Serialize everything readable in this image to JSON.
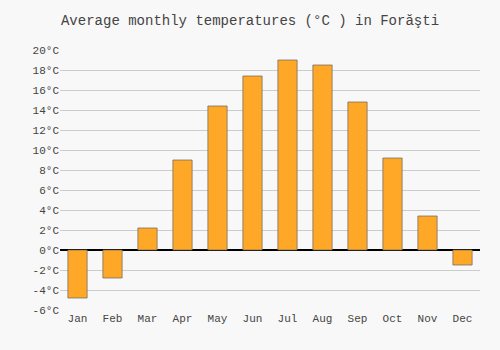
{
  "chart_data": {
    "type": "bar",
    "title": "Average monthly temperatures (°C ) in Forăşti",
    "categories": [
      "Jan",
      "Feb",
      "Mar",
      "Apr",
      "May",
      "Jun",
      "Jul",
      "Aug",
      "Sep",
      "Oct",
      "Nov",
      "Dec"
    ],
    "values": [
      -4.8,
      -2.8,
      2.2,
      9.0,
      14.4,
      17.4,
      19.0,
      18.5,
      14.8,
      9.2,
      3.4,
      -1.5
    ],
    "color": "#FFA726",
    "ylim": [
      -6,
      20
    ],
    "yticks": [
      {
        "value": -6,
        "label": "-6°C"
      },
      {
        "value": -4,
        "label": "-4°C"
      },
      {
        "value": -2,
        "label": "-2°C"
      },
      {
        "value": 0,
        "label": "0°C"
      },
      {
        "value": 2,
        "label": "2°C"
      },
      {
        "value": 4,
        "label": "4°C"
      },
      {
        "value": 6,
        "label": "6°C"
      },
      {
        "value": 8,
        "label": "8°C"
      },
      {
        "value": 10,
        "label": "10°C"
      },
      {
        "value": 12,
        "label": "12°C"
      },
      {
        "value": 14,
        "label": "14°C"
      },
      {
        "value": 16,
        "label": "16°C"
      },
      {
        "value": 18,
        "label": "18°C"
      },
      {
        "value": 20,
        "label": "20°C"
      }
    ],
    "grid": true
  }
}
